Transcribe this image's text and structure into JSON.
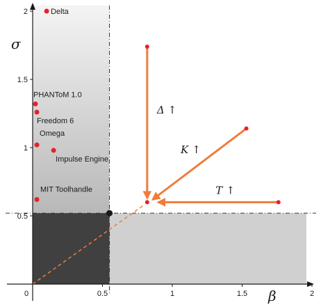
{
  "chart_data": {
    "type": "scatter",
    "title": "",
    "xlabel": "β",
    "ylabel": "σ",
    "xlim": [
      0,
      2
    ],
    "ylim": [
      0,
      2
    ],
    "x_ticks": [
      {
        "value": 0,
        "label": "0"
      },
      {
        "value": 0.5,
        "label": "0.5"
      },
      {
        "value": 1,
        "label": "1"
      },
      {
        "value": 1.5,
        "label": "1.5"
      },
      {
        "value": 2,
        "label": "2"
      }
    ],
    "y_ticks": [
      {
        "value": 0.5,
        "label": "0.5"
      },
      {
        "value": 1,
        "label": "1"
      },
      {
        "value": 1.5,
        "label": "1.5"
      },
      {
        "value": 2,
        "label": "2"
      }
    ],
    "threshold": {
      "beta": 0.55,
      "sigma": 0.52
    },
    "colors": {
      "points": "#e8202a",
      "arrows": "#ee7d3b",
      "dark_region": "#404040",
      "light_region": "#d0d0d0",
      "threshold_point": "#1a1a1a"
    },
    "points": [
      {
        "name": "Delta",
        "x": 0.1,
        "y": 2.0
      },
      {
        "name": "PHANToM 1.0",
        "x": 0.02,
        "y": 1.32
      },
      {
        "name": "Freedom 6",
        "x": 0.03,
        "y": 1.26
      },
      {
        "name": "Omega",
        "x": 0.03,
        "y": 1.02
      },
      {
        "name": "Impulse Engine",
        "x": 0.15,
        "y": 0.98
      },
      {
        "name": "MIT Toolhandle",
        "x": 0.03,
        "y": 0.62
      }
    ],
    "design_point": {
      "x": 0.82,
      "y": 0.6
    },
    "arrows": [
      {
        "label": "Δ",
        "from": [
          0.82,
          1.74
        ],
        "to": [
          0.82,
          0.63
        ]
      },
      {
        "label": "K",
        "from": [
          1.53,
          1.14
        ],
        "to": [
          0.86,
          0.62
        ]
      },
      {
        "label": "T",
        "from": [
          1.76,
          0.6
        ],
        "to": [
          0.9,
          0.6
        ]
      }
    ]
  }
}
